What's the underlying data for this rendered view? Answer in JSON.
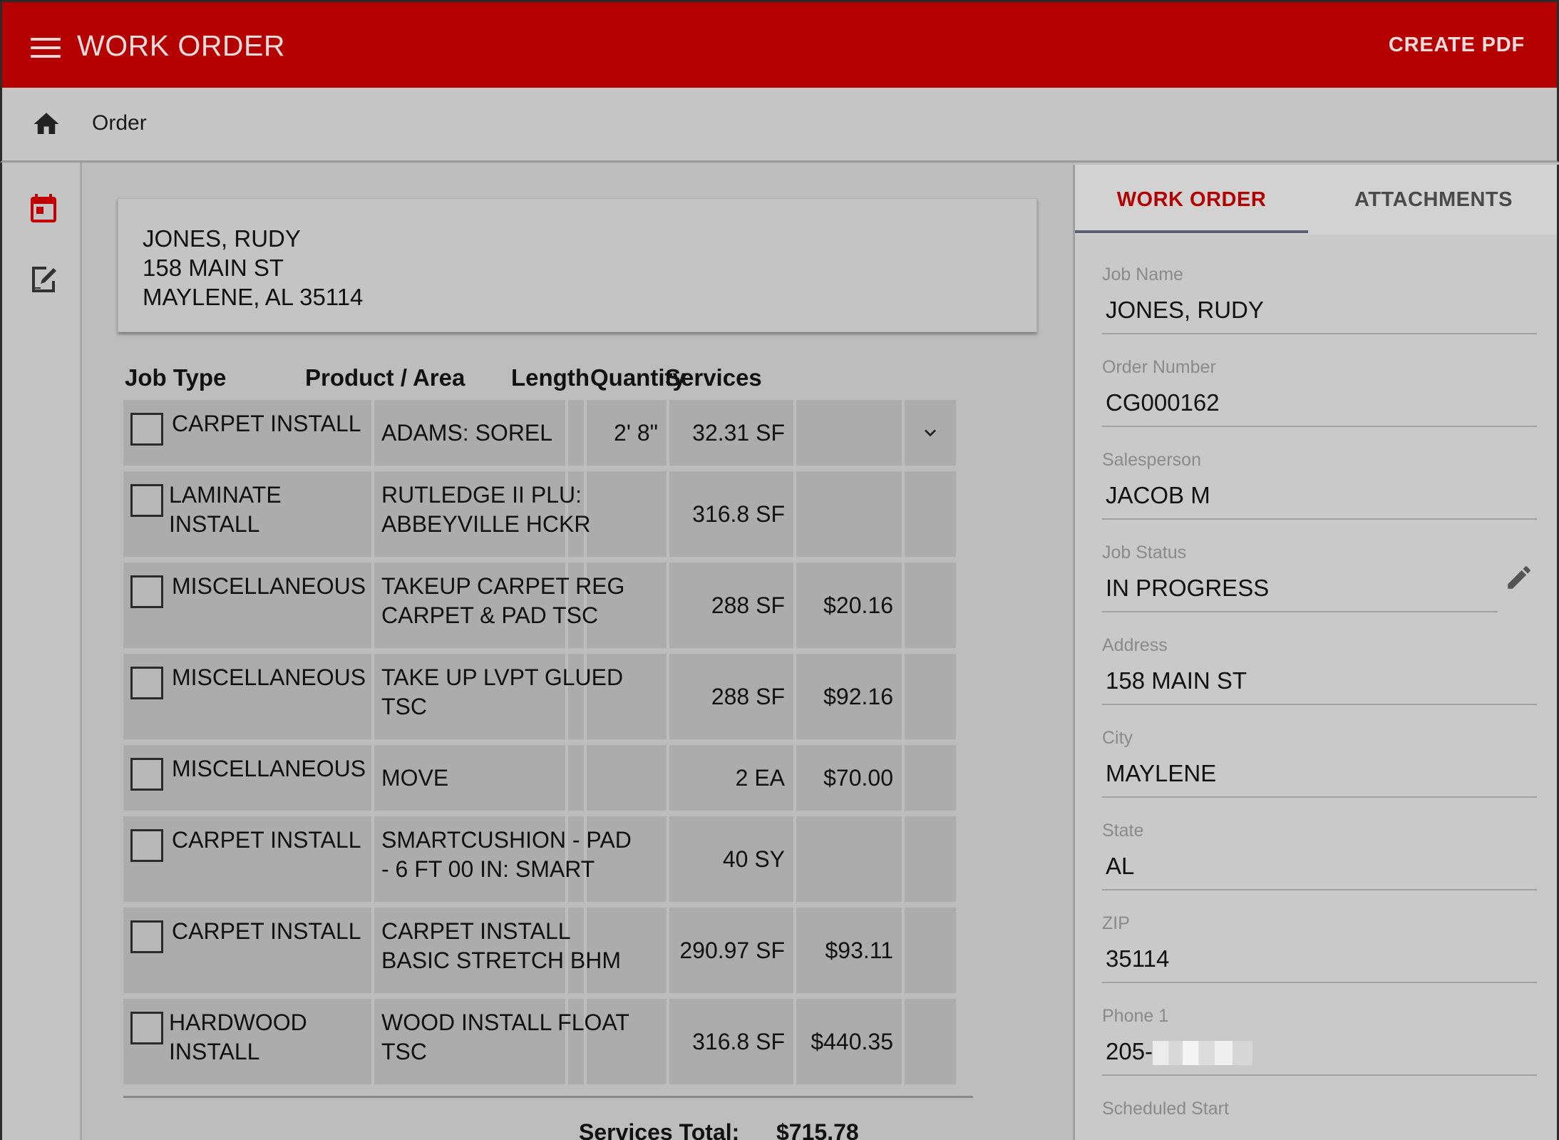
{
  "appbar": {
    "title": "WORK ORDER",
    "action": "CREATE PDF"
  },
  "breadcrumb": {
    "label": "Order"
  },
  "rail": {
    "icons": [
      "calendar-icon",
      "edit-document-icon"
    ]
  },
  "customer": {
    "name": "JONES, RUDY",
    "street": "158 MAIN ST",
    "city_line": "MAYLENE, AL 35114"
  },
  "table": {
    "headers": {
      "job_type": "Job Type",
      "product": "Product / Area",
      "length": "Length",
      "quantity": "Quantity",
      "services": "Services"
    },
    "rows": [
      {
        "job_type_1": "CARPET INSTALL",
        "job_type_2": "",
        "product_1": "ADAMS: SOREL",
        "product_2": "",
        "length": "2' 8\"",
        "quantity": "32.31 SF",
        "services": ""
      },
      {
        "job_type_1": "LAMINATE",
        "job_type_2": "INSTALL",
        "product_1": "RUTLEDGE II PLU:",
        "product_2": "ABBEYVILLE HCKR",
        "length": "",
        "quantity": "316.8 SF",
        "services": ""
      },
      {
        "job_type_1": "MISCELLANEOUS",
        "job_type_2": "",
        "product_1": "TAKEUP CARPET REG",
        "product_2": "CARPET & PAD TSC",
        "length": "",
        "quantity": "288 SF",
        "services": "$20.16"
      },
      {
        "job_type_1": "MISCELLANEOUS",
        "job_type_2": "",
        "product_1": "TAKE UP LVPT GLUED",
        "product_2": "TSC",
        "length": "",
        "quantity": "288 SF",
        "services": "$92.16"
      },
      {
        "job_type_1": "MISCELLANEOUS",
        "job_type_2": "",
        "product_1": "MOVE",
        "product_2": "",
        "length": "",
        "quantity": "2 EA",
        "services": "$70.00"
      },
      {
        "job_type_1": "CARPET INSTALL",
        "job_type_2": "",
        "product_1": "SMARTCUSHION - PAD",
        "product_2": "- 6 FT 00 IN: SMART",
        "length": "",
        "quantity": "40 SY",
        "services": ""
      },
      {
        "job_type_1": "CARPET INSTALL",
        "job_type_2": "",
        "product_1": "CARPET INSTALL",
        "product_2": "BASIC STRETCH BHM",
        "length": "",
        "quantity": "290.97 SF",
        "services": "$93.11"
      },
      {
        "job_type_1": "HARDWOOD",
        "job_type_2": "INSTALL",
        "product_1": "WOOD INSTALL FLOAT",
        "product_2": "TSC",
        "length": "",
        "quantity": "316.8 SF",
        "services": "$440.35"
      }
    ],
    "total_label": "Services Total:",
    "total_value": "$715.78"
  },
  "panel": {
    "tabs": {
      "active": "WORK ORDER",
      "inactive": "ATTACHMENTS"
    },
    "fields": [
      {
        "label": "Job Name",
        "value": "JONES, RUDY"
      },
      {
        "label": "Order Number",
        "value": "CG000162"
      },
      {
        "label": "Salesperson",
        "value": "JACOB M"
      },
      {
        "label": "Job Status",
        "value": "IN PROGRESS"
      },
      {
        "label": "Address",
        "value": "158 MAIN ST"
      },
      {
        "label": "City",
        "value": "MAYLENE"
      },
      {
        "label": "State",
        "value": "AL"
      },
      {
        "label": "ZIP",
        "value": "35114"
      },
      {
        "label": "Phone 1",
        "value": "205-"
      },
      {
        "label": "Scheduled Start",
        "value": ""
      }
    ]
  },
  "colors": {
    "brand": "#b50000",
    "accent_tab": "#b30000"
  }
}
